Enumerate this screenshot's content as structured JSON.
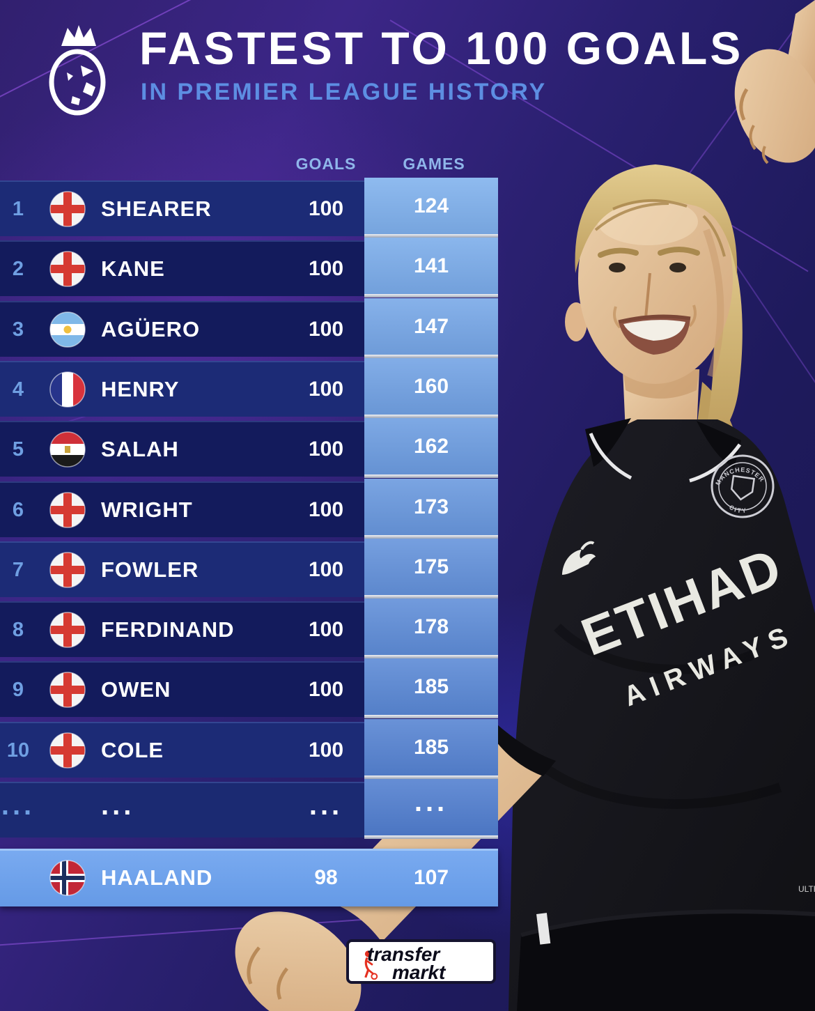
{
  "header": {
    "title": "FASTEST TO 100 GOALS",
    "subtitle": "IN PREMIER LEAGUE HISTORY"
  },
  "columns": {
    "goals": "GOALS",
    "games": "GAMES"
  },
  "table": {
    "rows": [
      {
        "rank": "1",
        "player": "SHEARER",
        "country": "england",
        "goals": "100",
        "games": "124"
      },
      {
        "rank": "2",
        "player": "KANE",
        "country": "england",
        "goals": "100",
        "games": "141"
      },
      {
        "rank": "3",
        "player": "AGÜERO",
        "country": "argentina",
        "goals": "100",
        "games": "147"
      },
      {
        "rank": "4",
        "player": "HENRY",
        "country": "france",
        "goals": "100",
        "games": "160"
      },
      {
        "rank": "5",
        "player": "SALAH",
        "country": "egypt",
        "goals": "100",
        "games": "162"
      },
      {
        "rank": "6",
        "player": "WRIGHT",
        "country": "england",
        "goals": "100",
        "games": "173"
      },
      {
        "rank": "7",
        "player": "FOWLER",
        "country": "england",
        "goals": "100",
        "games": "175"
      },
      {
        "rank": "8",
        "player": "FERDINAND",
        "country": "england",
        "goals": "100",
        "games": "178"
      },
      {
        "rank": "9",
        "player": "OWEN",
        "country": "england",
        "goals": "100",
        "games": "185"
      },
      {
        "rank": "10",
        "player": "COLE",
        "country": "england",
        "goals": "100",
        "games": "185"
      },
      {
        "rank": "...",
        "player": "...",
        "country": null,
        "goals": "...",
        "games": "..."
      }
    ],
    "highlight_row": {
      "player": "HAALAND",
      "country": "norway",
      "goals": "98",
      "games": "107"
    }
  },
  "photo": {
    "jersey_sponsor": "ETIHAD",
    "jersey_sponsor_line2": "AIRWAYS",
    "badge_top": "MANCHESTER",
    "badge_bottom": "CITY",
    "side_label": "ULTR"
  },
  "footer": {
    "logo_line1": "transfer",
    "logo_line2": "markt"
  },
  "colors": {
    "background_purple": "#3c2687",
    "row_dark": "#131b5c",
    "row_light": "#1c2b76",
    "row_ellipsis": "#1b2a72",
    "games_cell_top": "#7fb1ed",
    "games_cell_bottom": "#507ecf",
    "highlight_top": "#79aaf0",
    "highlight_bottom": "#659ae6",
    "rank_text": "#6f9fe2",
    "header_text": "#8fb6ea",
    "subtitle_text": "#5d8ee2",
    "tm_red": "#e53020",
    "line_purple": "#9a55e8"
  }
}
